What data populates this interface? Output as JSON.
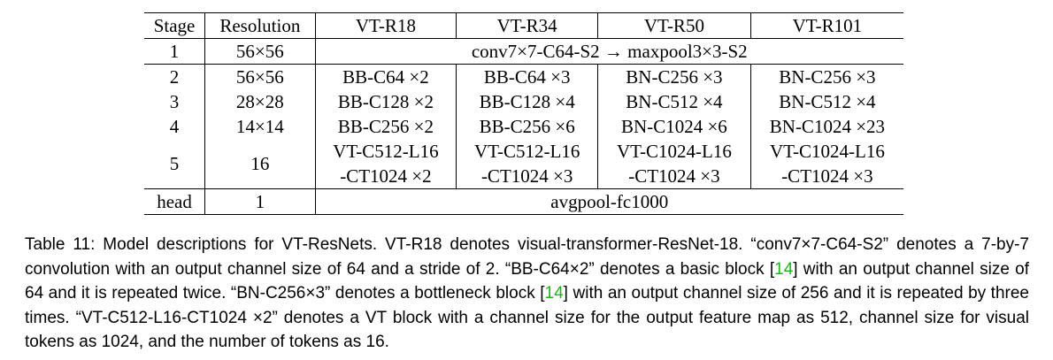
{
  "table": {
    "headers": [
      "Stage",
      "Resolution",
      "VT-R18",
      "VT-R34",
      "VT-R50",
      "VT-R101"
    ],
    "rows": [
      {
        "stage": "1",
        "res": "56×56",
        "span": "conv7×7-C64-S2 → maxpool3×3-S2"
      },
      {
        "stage": "2",
        "res": "56×56",
        "cells": [
          "BB-C64 ×2",
          "BB-C64 ×3",
          "BN-C256 ×3",
          "BN-C256 ×3"
        ]
      },
      {
        "stage": "3",
        "res": "28×28",
        "cells": [
          "BB-C128 ×2",
          "BB-C128 ×4",
          "BN-C512 ×4",
          "BN-C512 ×4"
        ]
      },
      {
        "stage": "4",
        "res": "14×14",
        "cells": [
          "BB-C256 ×2",
          "BB-C256 ×6",
          "BN-C1024 ×6",
          "BN-C1024 ×23"
        ]
      },
      {
        "stage": "5",
        "res": "16",
        "cells": [
          [
            "VT-C512-L16",
            "-CT1024 ×2"
          ],
          [
            "VT-C512-L16",
            "-CT1024 ×3"
          ],
          [
            "VT-C1024-L16",
            "-CT1024 ×3"
          ],
          [
            "VT-C1024-L16",
            "-CT1024 ×3"
          ]
        ]
      },
      {
        "stage": "head",
        "res": "1",
        "span": "avgpool-fc1000"
      }
    ]
  },
  "caption": {
    "p1": "Table 11: Model descriptions for VT-ResNets. VT-R18 denotes visual-transformer-ResNet-18. “conv7×7-C64-S2” denotes a 7-by-7 convolution with an output channel size of 64 and a stride of 2. “BB-C64×2” denotes a basic block [",
    "cite1": "14",
    "p2": "] with an output channel size of 64 and it is repeated twice. “BN-C256×3” denotes a bottleneck block [",
    "cite2": "14",
    "p3": "] with an output channel size of 256 and it is repeated by three times. “VT-C512-L16-CT1024 ×2” denotes a VT block with a channel size for the output feature map as 512, channel size for visual tokens as 1024, and the number of tokens as 16."
  }
}
